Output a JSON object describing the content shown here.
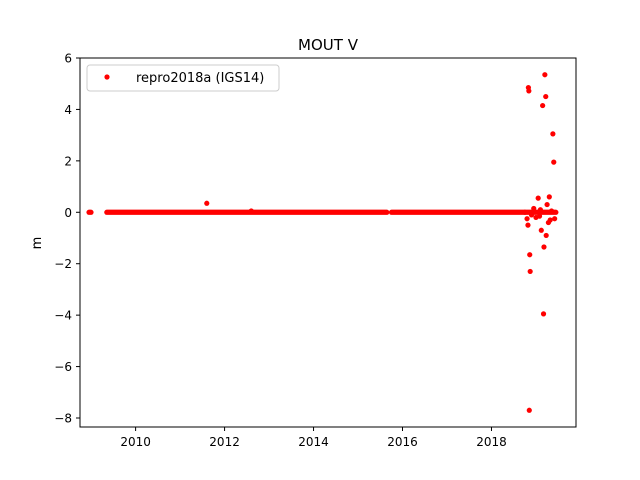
{
  "chart_data": {
    "type": "scatter",
    "title": "MOUT V",
    "xlabel": "",
    "ylabel": "m",
    "xlim": [
      2008.75,
      2019.9
    ],
    "ylim": [
      -8.35,
      6.0
    ],
    "x_ticks": [
      2010,
      2012,
      2014,
      2016,
      2018
    ],
    "y_ticks": [
      6,
      4,
      2,
      0,
      -2,
      -4,
      -6,
      -8
    ],
    "x_tick_labels": [
      "2010",
      "2012",
      "2014",
      "2016",
      "2018"
    ],
    "y_tick_labels": [
      "6",
      "4",
      "2",
      "0",
      "−2",
      "−4",
      "−6",
      "−8"
    ],
    "grid": false,
    "legend_position": "upper-left",
    "series": [
      {
        "name": "repro2018a (IGS14)",
        "color": "#ff0000",
        "marker": "circle",
        "segments": [
          {
            "x_start": 2008.95,
            "x_end": 2009.0,
            "y": 0.0
          },
          {
            "x_start": 2009.35,
            "x_end": 2015.65,
            "y": 0.0
          },
          {
            "x_start": 2015.75,
            "x_end": 2018.75,
            "y": 0.0
          },
          {
            "x_start": 2018.75,
            "x_end": 2019.45,
            "y": 0.0
          }
        ],
        "outliers": [
          [
            11.6,
            0.35
          ],
          [
            12.6,
            0.05
          ],
          [
            18.83,
            4.85
          ],
          [
            18.84,
            4.72
          ],
          [
            18.86,
            -1.65
          ],
          [
            18.87,
            -2.3
          ],
          [
            18.85,
            -7.7
          ],
          [
            18.82,
            -0.5
          ],
          [
            18.8,
            -0.25
          ],
          [
            18.9,
            -0.1
          ],
          [
            19.05,
            0.55
          ],
          [
            19.1,
            0.1
          ],
          [
            19.15,
            4.15
          ],
          [
            19.17,
            -3.95
          ],
          [
            19.18,
            -1.35
          ],
          [
            19.2,
            5.35
          ],
          [
            19.22,
            4.5
          ],
          [
            19.23,
            -0.9
          ],
          [
            19.25,
            0.3
          ],
          [
            19.28,
            -0.4
          ],
          [
            19.3,
            0.6
          ],
          [
            19.32,
            -0.3
          ],
          [
            19.38,
            3.05
          ],
          [
            19.4,
            1.95
          ],
          [
            19.42,
            -0.25
          ],
          [
            19.0,
            -0.2
          ],
          [
            19.12,
            -0.7
          ],
          [
            19.35,
            0.05
          ],
          [
            18.95,
            0.15
          ],
          [
            19.08,
            -0.15
          ]
        ]
      }
    ]
  }
}
